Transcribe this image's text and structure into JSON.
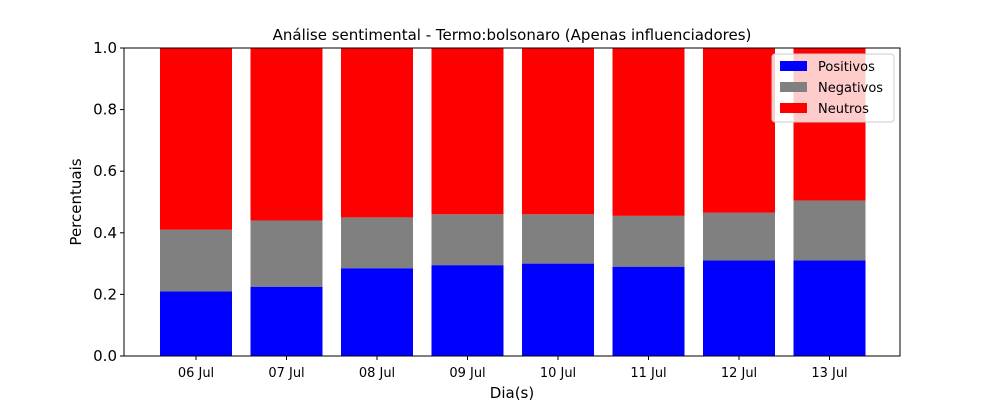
{
  "chart_data": {
    "type": "bar",
    "stacked": true,
    "title": "Análise sentimental - Termo:bolsonaro (Apenas influenciadores)",
    "xlabel": "Dia(s)",
    "ylabel": "Percentuais",
    "ylim": [
      0,
      1.0
    ],
    "yticks": [
      "0.0",
      "0.2",
      "0.4",
      "0.6",
      "0.8",
      "1.0"
    ],
    "categories": [
      "06 Jul",
      "07 Jul",
      "08 Jul",
      "09 Jul",
      "10 Jul",
      "11 Jul",
      "12 Jul",
      "13 Jul"
    ],
    "series": [
      {
        "name": "Positivos",
        "color": "#0000ff",
        "values": [
          0.21,
          0.225,
          0.285,
          0.295,
          0.3,
          0.29,
          0.31,
          0.31
        ]
      },
      {
        "name": "Negativos",
        "color": "#808080",
        "values": [
          0.2,
          0.215,
          0.165,
          0.165,
          0.16,
          0.165,
          0.155,
          0.195
        ]
      },
      {
        "name": "Neutros",
        "color": "#ff0000",
        "values": [
          0.59,
          0.56,
          0.55,
          0.54,
          0.54,
          0.545,
          0.535,
          0.495
        ]
      }
    ],
    "legend_position": "top-right",
    "grid": false
  }
}
